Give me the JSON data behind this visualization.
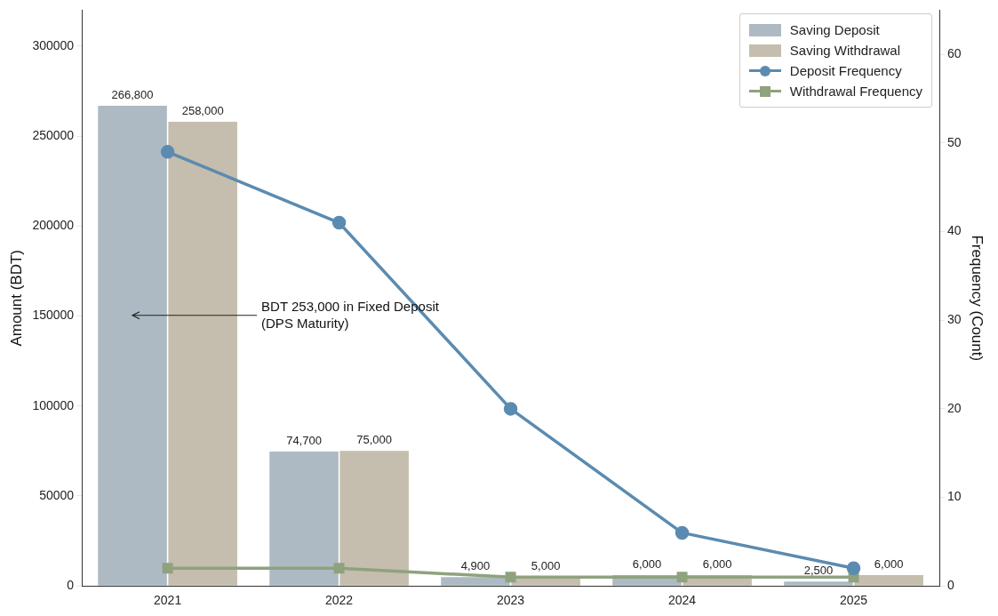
{
  "chart_data": {
    "type": "bar",
    "categories": [
      "2021",
      "2022",
      "2023",
      "2024",
      "2025"
    ],
    "ylabel": "Amount (BDT)",
    "y2label": "Frequency (Count)",
    "ylim": [
      0,
      320000
    ],
    "yticks": [
      0,
      50000,
      100000,
      150000,
      200000,
      250000,
      300000
    ],
    "y2lim": [
      0,
      65
    ],
    "y2ticks": [
      0,
      10,
      20,
      30,
      40,
      50,
      60
    ],
    "series": [
      {
        "name": "Saving Deposit",
        "color": "#adbac3",
        "values": [
          266800,
          74700,
          4900,
          6000,
          2500
        ],
        "value_labels": [
          "266,800",
          "74,700",
          "4,900",
          "6,000",
          "2,500"
        ]
      },
      {
        "name": "Saving Withdrawal",
        "color": "#c5bdae",
        "values": [
          258000,
          75000,
          5000,
          6000,
          6000
        ],
        "value_labels": [
          "258,000",
          "75,000",
          "5,000",
          "6,000",
          "6,000"
        ]
      },
      {
        "name": "Deposit Frequency",
        "type": "line",
        "axis": "y2",
        "color": "#5b8bb0",
        "marker": "circle",
        "values": [
          49,
          41,
          20,
          6,
          2
        ]
      },
      {
        "name": "Withdrawal Frequency",
        "type": "line",
        "axis": "y2",
        "color": "#8fa27e",
        "marker": "square",
        "values": [
          2,
          2,
          1,
          1,
          1
        ]
      }
    ],
    "annotations": [
      "BDT 253,000 in Fixed Deposit\n(DPS Maturity)"
    ],
    "grid": false,
    "legend": "top right",
    "line_style": "solid"
  }
}
